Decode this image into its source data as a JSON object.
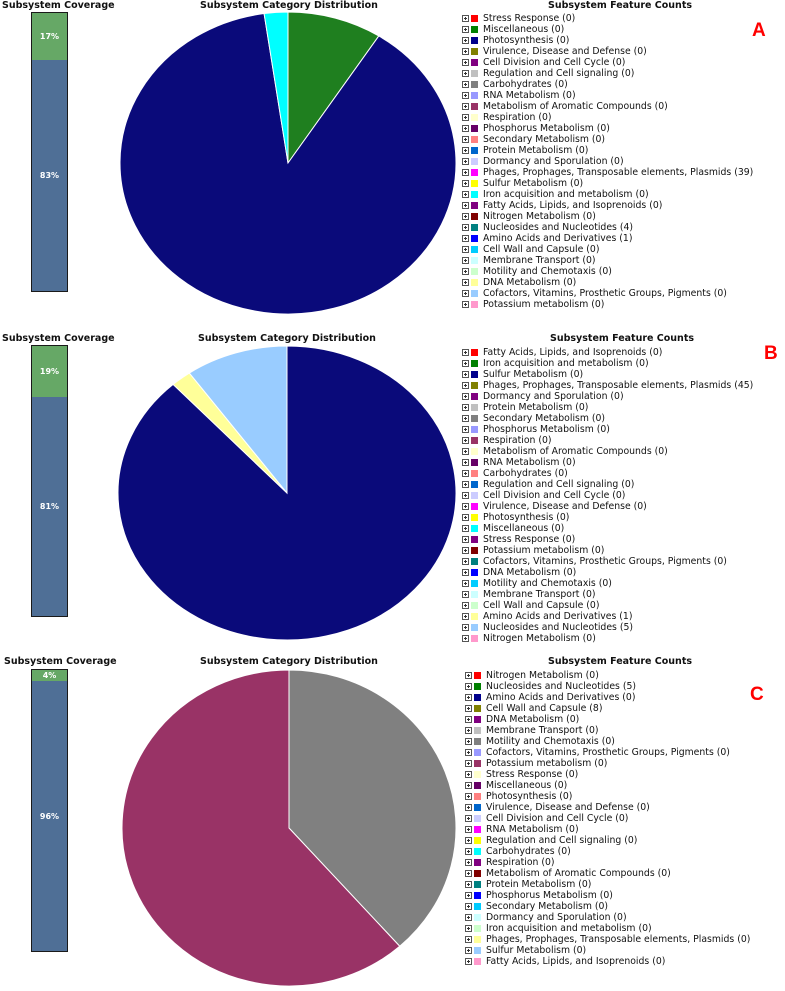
{
  "headers": {
    "coverage": "Subsystem Coverage",
    "distribution": "Subsystem Category Distribution",
    "features": "Subsystem Feature Counts"
  },
  "panels": [
    {
      "letter": "A",
      "coverage_top": "17%",
      "coverage_bottom": "83%",
      "coverage_top_fraction": 0.17,
      "pie": [
        {
          "value": 4,
          "color": "#1f7f1f"
        },
        {
          "value": 39,
          "color": "#0a0a7a"
        },
        {
          "value": 1,
          "color": "#00ffff"
        }
      ],
      "legend": [
        {
          "label": "Stress Response (0)",
          "color": "#ff0000"
        },
        {
          "label": "Miscellaneous (0)",
          "color": "#008000"
        },
        {
          "label": "Photosynthesis (0)",
          "color": "#00008b"
        },
        {
          "label": "Virulence, Disease and Defense (0)",
          "color": "#808000"
        },
        {
          "label": "Cell Division and Cell Cycle (0)",
          "color": "#800080"
        },
        {
          "label": "Regulation and Cell signaling (0)",
          "color": "#c0c0c0"
        },
        {
          "label": "Carbohydrates (0)",
          "color": "#808080"
        },
        {
          "label": "RNA Metabolism (0)",
          "color": "#9999ff"
        },
        {
          "label": "Metabolism of Aromatic Compounds (0)",
          "color": "#993366"
        },
        {
          "label": "Respiration (0)",
          "color": "#ffffcc"
        },
        {
          "label": "Phosphorus Metabolism (0)",
          "color": "#660066"
        },
        {
          "label": "Secondary Metabolism (0)",
          "color": "#ff8080"
        },
        {
          "label": "Protein Metabolism (0)",
          "color": "#0066cc"
        },
        {
          "label": "Dormancy and Sporulation (0)",
          "color": "#ccccff"
        },
        {
          "label": "Phages, Prophages, Transposable elements, Plasmids (39)",
          "color": "#ff00ff"
        },
        {
          "label": "Sulfur Metabolism (0)",
          "color": "#ffff00"
        },
        {
          "label": "Iron acquisition and metabolism (0)",
          "color": "#00ffff"
        },
        {
          "label": "Fatty Acids, Lipids, and Isoprenoids (0)",
          "color": "#800080"
        },
        {
          "label": "Nitrogen Metabolism (0)",
          "color": "#800000"
        },
        {
          "label": "Nucleosides and Nucleotides (4)",
          "color": "#008080"
        },
        {
          "label": "Amino Acids and Derivatives (1)",
          "color": "#0000ff"
        },
        {
          "label": "Cell Wall and Capsule (0)",
          "color": "#00ccff"
        },
        {
          "label": "Membrane Transport (0)",
          "color": "#ccffff"
        },
        {
          "label": "Motility and Chemotaxis (0)",
          "color": "#ccffcc"
        },
        {
          "label": "DNA Metabolism (0)",
          "color": "#ffff99"
        },
        {
          "label": "Cofactors, Vitamins, Prosthetic Groups, Pigments (0)",
          "color": "#99ccff"
        },
        {
          "label": "Potassium metabolism (0)",
          "color": "#ff99cc"
        }
      ]
    },
    {
      "letter": "B",
      "coverage_top": "19%",
      "coverage_bottom": "81%",
      "coverage_top_fraction": 0.19,
      "pie": [
        {
          "value": 45,
          "color": "#0a0a7a"
        },
        {
          "value": 1,
          "color": "#ffff99"
        },
        {
          "value": 5,
          "color": "#99ccff"
        }
      ],
      "legend": [
        {
          "label": "Fatty Acids, Lipids, and Isoprenoids (0)",
          "color": "#ff0000"
        },
        {
          "label": "Iron acquisition and metabolism (0)",
          "color": "#008000"
        },
        {
          "label": "Sulfur Metabolism (0)",
          "color": "#00008b"
        },
        {
          "label": "Phages, Prophages, Transposable elements, Plasmids (45)",
          "color": "#808000"
        },
        {
          "label": "Dormancy and Sporulation (0)",
          "color": "#800080"
        },
        {
          "label": "Protein Metabolism (0)",
          "color": "#c0c0c0"
        },
        {
          "label": "Secondary Metabolism (0)",
          "color": "#808080"
        },
        {
          "label": "Phosphorus Metabolism (0)",
          "color": "#9999ff"
        },
        {
          "label": "Respiration (0)",
          "color": "#993366"
        },
        {
          "label": "Metabolism of Aromatic Compounds (0)",
          "color": "#ffffcc"
        },
        {
          "label": "RNA Metabolism (0)",
          "color": "#660066"
        },
        {
          "label": "Carbohydrates (0)",
          "color": "#ff8080"
        },
        {
          "label": "Regulation and Cell signaling (0)",
          "color": "#0066cc"
        },
        {
          "label": "Cell Division and Cell Cycle (0)",
          "color": "#ccccff"
        },
        {
          "label": "Virulence, Disease and Defense (0)",
          "color": "#ff00ff"
        },
        {
          "label": "Photosynthesis (0)",
          "color": "#ffff00"
        },
        {
          "label": "Miscellaneous (0)",
          "color": "#00ffff"
        },
        {
          "label": "Stress Response (0)",
          "color": "#800080"
        },
        {
          "label": "Potassium metabolism (0)",
          "color": "#800000"
        },
        {
          "label": "Cofactors, Vitamins, Prosthetic Groups, Pigments (0)",
          "color": "#008080"
        },
        {
          "label": "DNA Metabolism (0)",
          "color": "#0000ff"
        },
        {
          "label": "Motility and Chemotaxis (0)",
          "color": "#00ccff"
        },
        {
          "label": "Membrane Transport (0)",
          "color": "#ccffff"
        },
        {
          "label": "Cell Wall and Capsule (0)",
          "color": "#ccffcc"
        },
        {
          "label": "Amino Acids and Derivatives (1)",
          "color": "#ffff99"
        },
        {
          "label": "Nucleosides and Nucleotides (5)",
          "color": "#99ccff"
        },
        {
          "label": "Nitrogen Metabolism (0)",
          "color": "#ff99cc"
        }
      ]
    },
    {
      "letter": "C",
      "coverage_top": "4%",
      "coverage_bottom": "96%",
      "coverage_top_fraction": 0.04,
      "pie": [
        {
          "value": 5,
          "color": "#808080"
        },
        {
          "value": 8,
          "color": "#993366"
        }
      ],
      "legend": [
        {
          "label": "Nitrogen Metabolism (0)",
          "color": "#ff0000"
        },
        {
          "label": "Nucleosides and Nucleotides (5)",
          "color": "#008000"
        },
        {
          "label": "Amino Acids and Derivatives (0)",
          "color": "#00008b"
        },
        {
          "label": "Cell Wall and Capsule (8)",
          "color": "#808000"
        },
        {
          "label": "DNA Metabolism (0)",
          "color": "#800080"
        },
        {
          "label": "Membrane Transport (0)",
          "color": "#c0c0c0"
        },
        {
          "label": "Motility and Chemotaxis (0)",
          "color": "#808080"
        },
        {
          "label": "Cofactors, Vitamins, Prosthetic Groups, Pigments (0)",
          "color": "#9999ff"
        },
        {
          "label": "Potassium metabolism (0)",
          "color": "#993366"
        },
        {
          "label": "Stress Response (0)",
          "color": "#ffffcc"
        },
        {
          "label": "Miscellaneous (0)",
          "color": "#660066"
        },
        {
          "label": "Photosynthesis (0)",
          "color": "#ff8080"
        },
        {
          "label": "Virulence, Disease and Defense (0)",
          "color": "#0066cc"
        },
        {
          "label": "Cell Division and Cell Cycle (0)",
          "color": "#ccccff"
        },
        {
          "label": "RNA Metabolism (0)",
          "color": "#ff00ff"
        },
        {
          "label": "Regulation and Cell signaling (0)",
          "color": "#ffff00"
        },
        {
          "label": "Carbohydrates (0)",
          "color": "#00ffff"
        },
        {
          "label": "Respiration (0)",
          "color": "#800080"
        },
        {
          "label": "Metabolism of Aromatic Compounds (0)",
          "color": "#800000"
        },
        {
          "label": "Protein Metabolism (0)",
          "color": "#008080"
        },
        {
          "label": "Phosphorus Metabolism (0)",
          "color": "#0000ff"
        },
        {
          "label": "Secondary Metabolism (0)",
          "color": "#00ccff"
        },
        {
          "label": "Dormancy and Sporulation (0)",
          "color": "#ccffff"
        },
        {
          "label": "Iron acquisition and metabolism (0)",
          "color": "#ccffcc"
        },
        {
          "label": "Phages, Prophages, Transposable elements, Plasmids (0)",
          "color": "#ffff99"
        },
        {
          "label": "Sulfur Metabolism (0)",
          "color": "#99ccff"
        },
        {
          "label": "Fatty Acids, Lipids, and Isoprenoids (0)",
          "color": "#ff99cc"
        }
      ]
    }
  ]
}
